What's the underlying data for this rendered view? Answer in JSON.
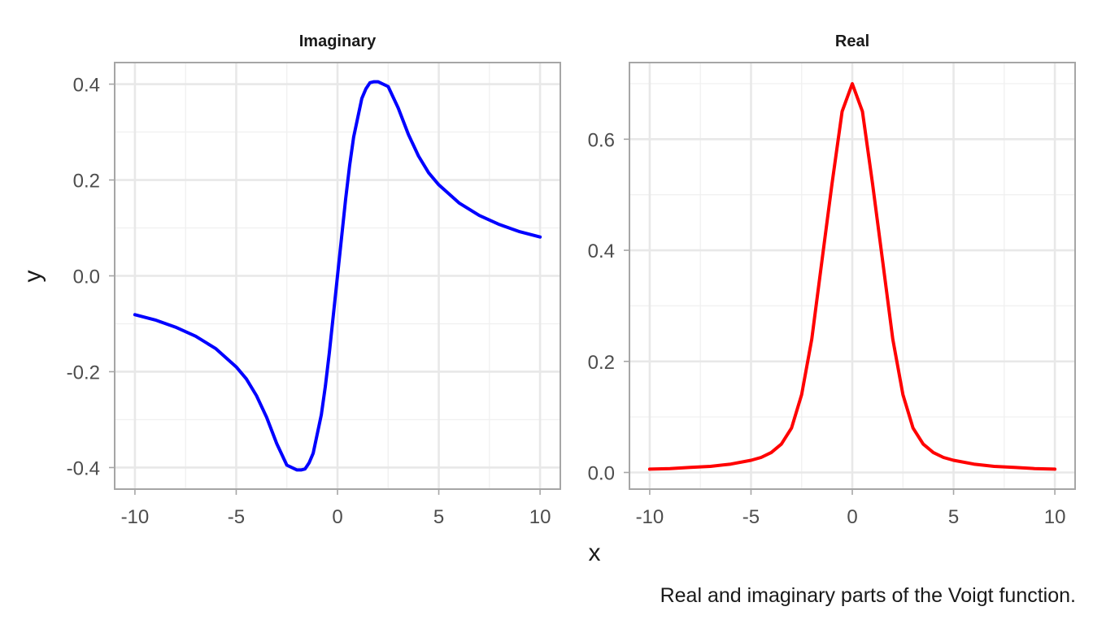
{
  "chart_data": [
    {
      "type": "line",
      "title": "Imaginary",
      "xlim": [
        -11,
        11
      ],
      "ylim": [
        -0.445,
        0.445
      ],
      "x_ticks": [
        -10,
        -5,
        0,
        5,
        10
      ],
      "x_tick_labels": [
        "-10",
        "-5",
        "0",
        "5",
        "10"
      ],
      "y_ticks": [
        -0.4,
        -0.2,
        0.0,
        0.2,
        0.4
      ],
      "y_tick_labels": [
        "-0.4",
        "-0.2",
        "0.0",
        "0.2",
        "0.4"
      ],
      "grid": true,
      "series": [
        {
          "color": "#0000ff",
          "x": [
            -10,
            -9,
            -8,
            -7,
            -6,
            -5,
            -4.5,
            -4,
            -3.5,
            -3,
            -2.5,
            -2,
            -1.8,
            -1.6,
            -1.4,
            -1.2,
            -1,
            -0.8,
            -0.6,
            -0.4,
            -0.2,
            0,
            0.2,
            0.4,
            0.6,
            0.8,
            1,
            1.2,
            1.4,
            1.6,
            1.8,
            2,
            2.5,
            3,
            3.5,
            4,
            4.5,
            5,
            6,
            7,
            8,
            9,
            10
          ],
          "y": [
            -0.081,
            -0.092,
            -0.107,
            -0.126,
            -0.152,
            -0.19,
            -0.215,
            -0.25,
            -0.295,
            -0.35,
            -0.395,
            -0.405,
            -0.405,
            -0.403,
            -0.39,
            -0.37,
            -0.33,
            -0.29,
            -0.23,
            -0.16,
            -0.08,
            0.0,
            0.08,
            0.16,
            0.23,
            0.29,
            0.33,
            0.37,
            0.39,
            0.403,
            0.405,
            0.405,
            0.395,
            0.35,
            0.295,
            0.25,
            0.215,
            0.19,
            0.152,
            0.126,
            0.107,
            0.092,
            0.081
          ]
        }
      ]
    },
    {
      "type": "line",
      "title": "Real",
      "xlim": [
        -11,
        11
      ],
      "ylim": [
        -0.03,
        0.738
      ],
      "x_ticks": [
        -10,
        -5,
        0,
        5,
        10
      ],
      "x_tick_labels": [
        "-10",
        "-5",
        "0",
        "5",
        "10"
      ],
      "y_ticks": [
        0.0,
        0.2,
        0.4,
        0.6
      ],
      "y_tick_labels": [
        "0.0",
        "0.2",
        "0.4",
        "0.6"
      ],
      "grid": true,
      "series": [
        {
          "color": "#ff0000",
          "x": [
            -10,
            -9,
            -8,
            -7,
            -6,
            -5,
            -4.5,
            -4,
            -3.5,
            -3,
            -2.5,
            -2,
            -1.5,
            -1,
            -0.5,
            0,
            0.5,
            1,
            1.5,
            2,
            2.5,
            3,
            3.5,
            4,
            4.5,
            5,
            6,
            7,
            8,
            9,
            10
          ],
          "y": [
            0.006,
            0.007,
            0.009,
            0.011,
            0.015,
            0.022,
            0.027,
            0.036,
            0.051,
            0.08,
            0.14,
            0.24,
            0.38,
            0.52,
            0.65,
            0.7,
            0.65,
            0.52,
            0.38,
            0.24,
            0.14,
            0.08,
            0.051,
            0.036,
            0.027,
            0.022,
            0.015,
            0.011,
            0.009,
            0.007,
            0.006
          ]
        }
      ]
    }
  ],
  "shared": {
    "xlabel": "x",
    "ylabel": "y",
    "caption": "Real and imaginary parts of the Voigt function."
  }
}
